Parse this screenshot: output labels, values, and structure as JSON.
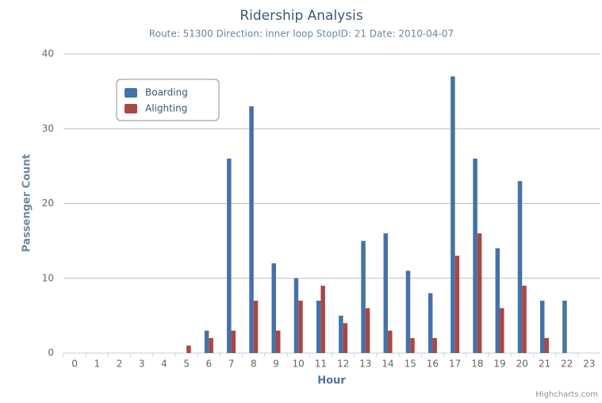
{
  "chart_data": {
    "type": "bar",
    "title": "Ridership Analysis",
    "subtitle": "Route: 51300 Direction: inner loop StopID: 21 Date: 2010-04-07",
    "x_label": "Hour",
    "y_label": "Passenger Count",
    "credits": "Highcharts.com",
    "categories": [
      "0",
      "1",
      "2",
      "3",
      "4",
      "5",
      "6",
      "7",
      "8",
      "9",
      "10",
      "11",
      "12",
      "13",
      "14",
      "15",
      "16",
      "17",
      "18",
      "19",
      "20",
      "21",
      "22",
      "23"
    ],
    "series": [
      {
        "name": "Boarding",
        "color": "#4572A7",
        "values": [
          0,
          0,
          0,
          0,
          0,
          0,
          3,
          26,
          33,
          12,
          10,
          7,
          5,
          15,
          16,
          11,
          8,
          37,
          26,
          14,
          23,
          7,
          7,
          0
        ]
      },
      {
        "name": "Alighting",
        "color": "#AA4643",
        "values": [
          0,
          0,
          0,
          0,
          0,
          1,
          2,
          3,
          7,
          3,
          7,
          9,
          4,
          6,
          3,
          2,
          2,
          13,
          16,
          6,
          9,
          2,
          0,
          0
        ]
      }
    ],
    "ylim": [
      0,
      40
    ],
    "yticks": [
      0,
      10,
      20,
      30,
      40
    ],
    "grid": true,
    "legend": "top-left"
  }
}
